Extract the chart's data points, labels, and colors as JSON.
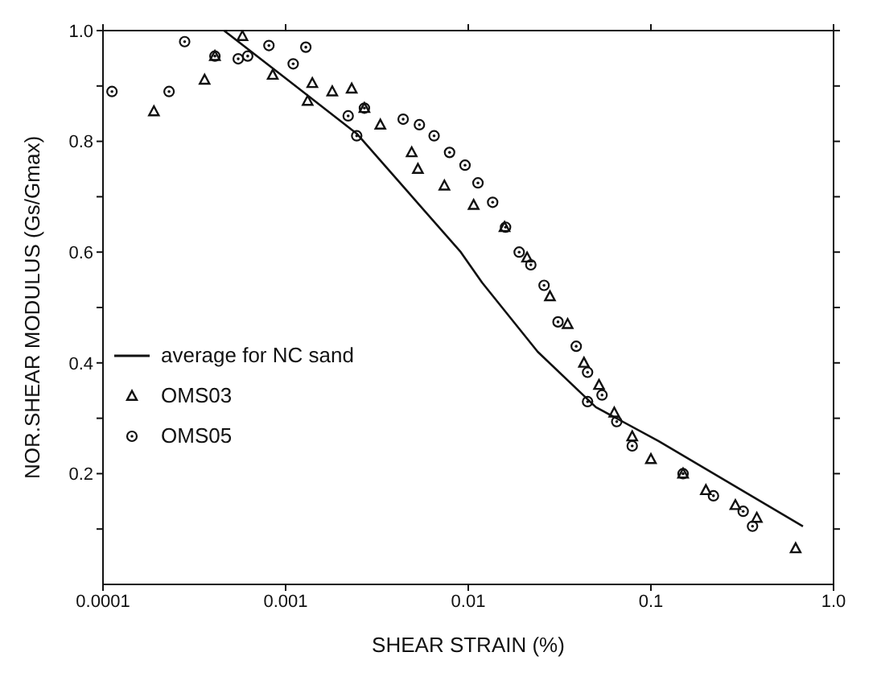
{
  "chart_data": {
    "type": "scatter",
    "xlabel": "SHEAR STRAIN (%)",
    "ylabel": "NOR.SHEAR MODULUS (Gs/Gmax)",
    "log": "x",
    "legend": "left",
    "xlim": [
      0.0001,
      1
    ],
    "xticks": [
      0.0001,
      0.001,
      0.01,
      0.1,
      {
        "value": 1,
        "label": "1.0"
      }
    ],
    "ylim": [
      0,
      1
    ],
    "yticks": [
      {
        "value": 0.1,
        "label": null
      },
      0.2,
      {
        "value": 0.3,
        "label": null
      },
      0.4,
      {
        "value": 0.5,
        "label": null
      },
      0.6,
      {
        "value": 0.7,
        "label": null
      },
      0.8,
      {
        "value": 0.9,
        "label": null
      },
      {
        "value": 1,
        "label": "1.0"
      }
    ],
    "series": [
      {
        "name": "average for NC sand",
        "type": "line",
        "color": "#111111",
        "marker": "none",
        "line_style": "solid",
        "x": [
          0.00046,
          0.001,
          0.00245,
          0.0091,
          0.0119,
          0.024,
          0.05,
          0.11,
          0.68
        ],
        "values": [
          1.0,
          0.914,
          0.814,
          0.6,
          0.545,
          0.42,
          0.32,
          0.259,
          0.105
        ]
      },
      {
        "name": "OMS03",
        "color": "#111111",
        "marker": "triangle",
        "x": [
          0.00019,
          0.00036,
          0.00041,
          0.00058,
          0.00085,
          0.00132,
          0.0014,
          0.0018,
          0.0023,
          0.0027,
          0.0033,
          0.0049,
          0.0053,
          0.0074,
          0.0107,
          0.0158,
          0.021,
          0.028,
          0.035,
          0.043,
          0.052,
          0.063,
          0.079,
          0.1,
          0.15,
          0.2,
          0.29,
          0.38,
          0.62
        ],
        "values": [
          0.854,
          0.911,
          0.954,
          0.99,
          0.92,
          0.873,
          0.905,
          0.89,
          0.895,
          0.86,
          0.83,
          0.78,
          0.75,
          0.72,
          0.685,
          0.645,
          0.59,
          0.52,
          0.47,
          0.4,
          0.36,
          0.31,
          0.267,
          0.226,
          0.2,
          0.17,
          0.143,
          0.12,
          0.065
        ]
      },
      {
        "name": "OMS05",
        "color": "#111111",
        "marker": "circle",
        "x": [
          0.000112,
          0.00023,
          0.00028,
          0.00041,
          0.00055,
          0.00062,
          0.00081,
          0.00129,
          0.0011,
          0.0022,
          0.00245,
          0.0027,
          0.0044,
          0.0054,
          0.0065,
          0.0079,
          0.0096,
          0.0113,
          0.0136,
          0.016,
          0.019,
          0.022,
          0.026,
          0.031,
          0.039,
          0.045,
          0.054,
          0.065,
          0.079,
          0.045,
          0.15,
          0.22,
          0.32,
          0.36
        ],
        "values": [
          0.89,
          0.89,
          0.98,
          0.954,
          0.949,
          0.954,
          0.973,
          0.97,
          0.94,
          0.846,
          0.81,
          0.86,
          0.84,
          0.83,
          0.81,
          0.78,
          0.757,
          0.725,
          0.69,
          0.645,
          0.6,
          0.577,
          0.54,
          0.474,
          0.43,
          0.383,
          0.342,
          0.294,
          0.25,
          0.33,
          0.2,
          0.16,
          0.132,
          0.105
        ]
      }
    ]
  }
}
